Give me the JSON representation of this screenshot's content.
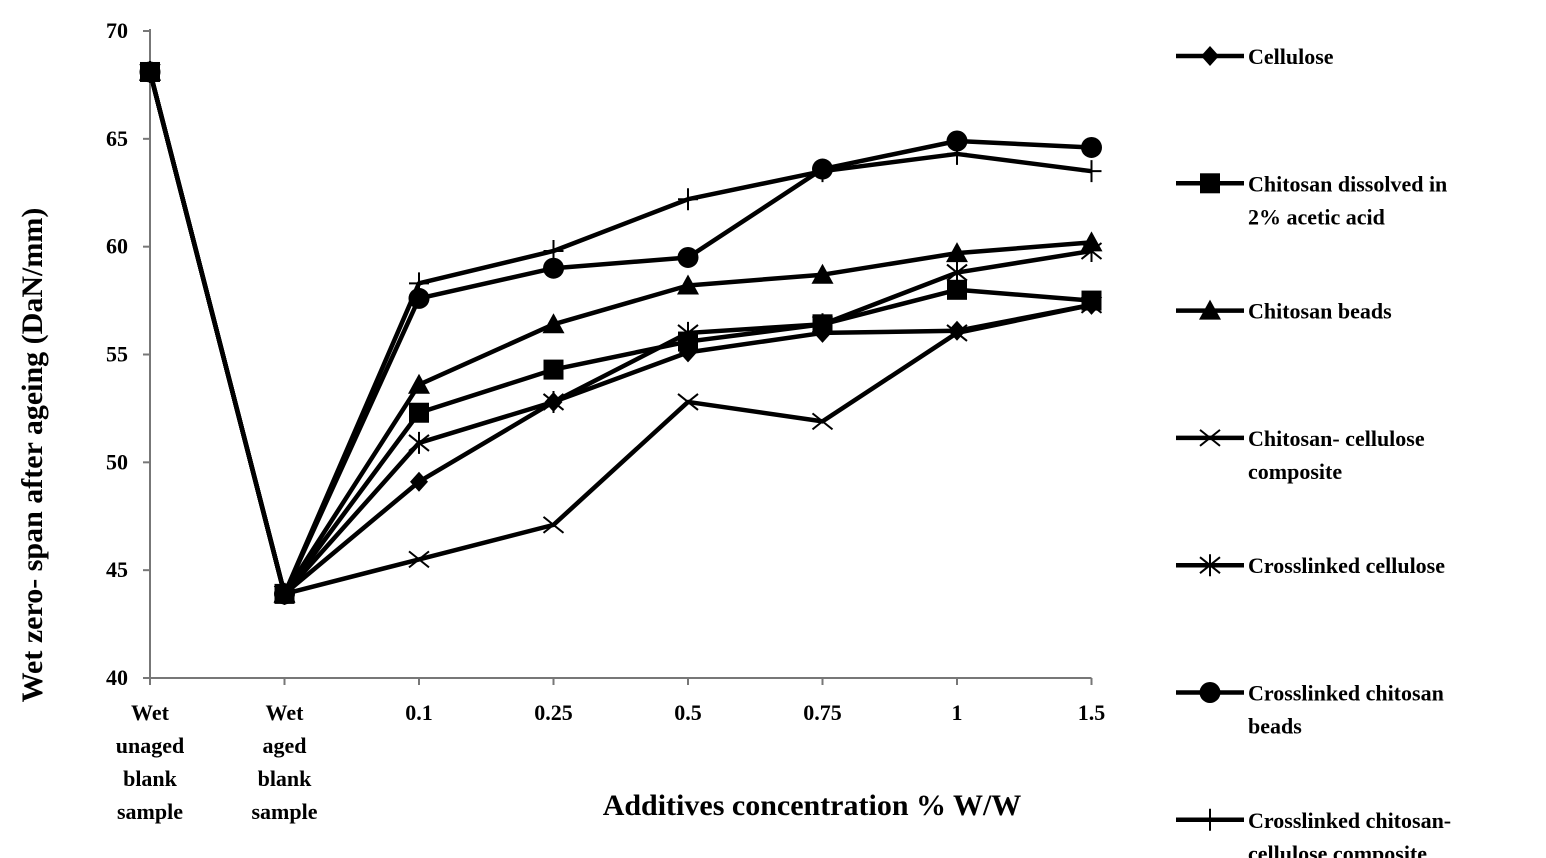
{
  "chart_data": {
    "type": "line",
    "title": "",
    "xlabel": "Additives concentration % W/W",
    "ylabel": "Wet zero- span after ageing (DaN/mm)",
    "categories": [
      [
        "Wet",
        "unaged",
        "blank",
        "sample"
      ],
      [
        "Wet",
        "aged",
        "blank",
        "sample"
      ],
      [
        "0.1"
      ],
      [
        "0.25"
      ],
      [
        "0.5"
      ],
      [
        "0.75"
      ],
      [
        "1"
      ],
      [
        "1.5"
      ]
    ],
    "ylim": [
      40,
      70
    ],
    "yticks": [
      "40",
      "45",
      "50",
      "55",
      "60",
      "65",
      "70"
    ],
    "grid": false,
    "legend_position": "right",
    "series": [
      {
        "name": [
          "Cellulose"
        ],
        "marker": "diamond",
        "values": [
          68.1,
          43.9,
          49.1,
          52.8,
          55.1,
          56.0,
          56.1,
          57.3
        ]
      },
      {
        "name": [
          "Chitosan dissolved in",
          "2% acetic acid"
        ],
        "marker": "square",
        "values": [
          68.1,
          43.9,
          52.3,
          54.3,
          55.6,
          56.4,
          58.0,
          57.5
        ]
      },
      {
        "name": [
          "Chitosan beads"
        ],
        "marker": "triangle",
        "values": [
          68.1,
          43.9,
          53.6,
          56.4,
          58.2,
          58.7,
          59.7,
          60.2
        ]
      },
      {
        "name": [
          "Chitosan- cellulose",
          "composite"
        ],
        "marker": "x",
        "values": [
          68.1,
          43.9,
          45.5,
          47.1,
          52.8,
          51.9,
          56.0,
          57.3
        ]
      },
      {
        "name": [
          "Crosslinked cellulose"
        ],
        "marker": "asterisk",
        "values": [
          68.1,
          43.9,
          50.9,
          52.8,
          56.0,
          56.4,
          58.8,
          59.8
        ]
      },
      {
        "name": [
          "Crosslinked chitosan",
          "beads"
        ],
        "marker": "circle",
        "values": [
          68.1,
          43.9,
          57.6,
          59.0,
          59.5,
          63.6,
          64.9,
          64.6
        ]
      },
      {
        "name": [
          "Crosslinked chitosan-",
          "cellulose composite"
        ],
        "marker": "plus",
        "values": [
          68.1,
          43.9,
          58.3,
          59.8,
          62.2,
          63.5,
          64.3,
          63.5
        ]
      }
    ]
  }
}
